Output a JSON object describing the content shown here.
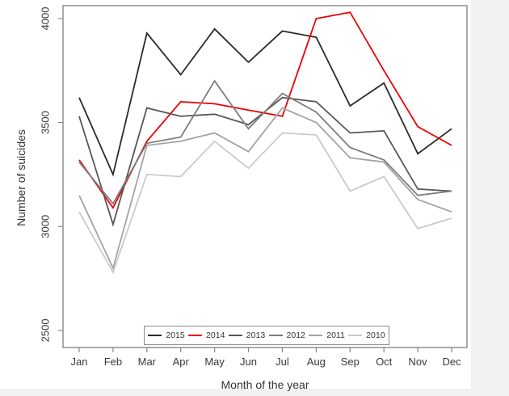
{
  "chart_data": {
    "type": "line",
    "title": "",
    "xlabel": "Month of the year",
    "ylabel": "Number of suicides",
    "categories": [
      "Jan",
      "Feb",
      "Mar",
      "Apr",
      "May",
      "Jun",
      "Jul",
      "Aug",
      "Sep",
      "Oct",
      "Nov",
      "Dec"
    ],
    "y_ticks": [
      2500,
      3000,
      3500,
      4000
    ],
    "ylim": [
      2418,
      4062
    ],
    "grid": false,
    "legend_position": "bottom-center-inside",
    "series": [
      {
        "name": "2015",
        "color": "#2b2b2b",
        "values": [
          3620,
          3250,
          3930,
          3730,
          3950,
          3790,
          3940,
          3910,
          3580,
          3690,
          3350,
          3470
        ]
      },
      {
        "name": "2014",
        "color": "#ee0000",
        "values": [
          3320,
          3090,
          3410,
          3600,
          3590,
          3560,
          3530,
          4000,
          4030,
          3750,
          3480,
          3390
        ]
      },
      {
        "name": "2013",
        "color": "#575757",
        "values": [
          3530,
          3010,
          3570,
          3530,
          3540,
          3490,
          3620,
          3600,
          3450,
          3460,
          3180,
          3170
        ]
      },
      {
        "name": "2012",
        "color": "#7d7d7d",
        "values": [
          3310,
          3110,
          3400,
          3430,
          3700,
          3470,
          3640,
          3550,
          3380,
          3320,
          3150,
          3170
        ]
      },
      {
        "name": "2011",
        "color": "#a3a3a3",
        "values": [
          3150,
          2800,
          3390,
          3410,
          3450,
          3360,
          3570,
          3500,
          3330,
          3310,
          3130,
          3070
        ]
      },
      {
        "name": "2010",
        "color": "#cacaca",
        "values": [
          3070,
          2780,
          3250,
          3240,
          3410,
          3280,
          3450,
          3440,
          3170,
          3240,
          2990,
          3040
        ]
      }
    ],
    "axis_color": "#878787"
  }
}
